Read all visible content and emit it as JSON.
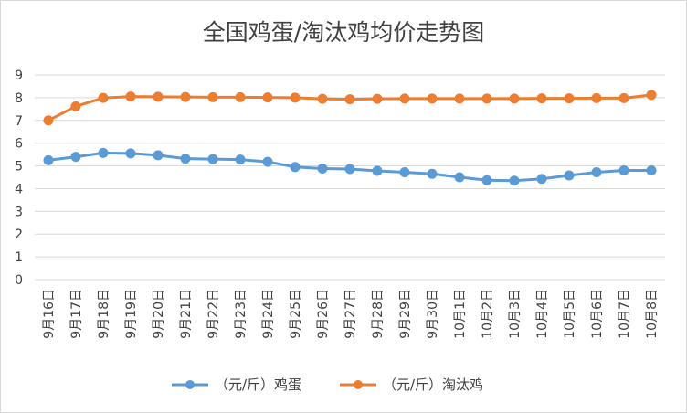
{
  "chart_data": {
    "type": "line",
    "title": "全国鸡蛋/淘汰鸡均价走势图",
    "xlabel": "",
    "ylabel": "",
    "ylim": [
      0,
      9
    ],
    "yticks": [
      "0",
      "1",
      "2",
      "3",
      "4",
      "5",
      "6",
      "7",
      "8",
      "9"
    ],
    "grid": true,
    "legend_position": "bottom",
    "categories": [
      "9月16日",
      "9月17日",
      "9月18日",
      "9月19日",
      "9月20日",
      "9月21日",
      "9月22日",
      "9月23日",
      "9月24日",
      "9月25日",
      "9月26日",
      "9月27日",
      "9月28日",
      "9月29日",
      "9月30日",
      "10月1日",
      "10月2日",
      "10月3日",
      "10月4日",
      "10月5日",
      "10月6日",
      "10月7日",
      "10月8日"
    ],
    "series": [
      {
        "name": "（元/斤）鸡蛋",
        "color": "#5b9bd5",
        "values": [
          5.25,
          5.4,
          5.57,
          5.55,
          5.47,
          5.32,
          5.3,
          5.28,
          5.18,
          4.95,
          4.88,
          4.86,
          4.78,
          4.72,
          4.65,
          4.5,
          4.37,
          4.35,
          4.43,
          4.58,
          4.72,
          4.8,
          4.8
        ]
      },
      {
        "name": "（元/斤）淘汰鸡",
        "color": "#ed7d31",
        "values": [
          7.0,
          7.62,
          7.99,
          8.05,
          8.04,
          8.03,
          8.02,
          8.02,
          8.01,
          8.0,
          7.95,
          7.93,
          7.95,
          7.96,
          7.96,
          7.96,
          7.96,
          7.96,
          7.97,
          7.97,
          7.98,
          7.98,
          8.12
        ]
      }
    ]
  }
}
